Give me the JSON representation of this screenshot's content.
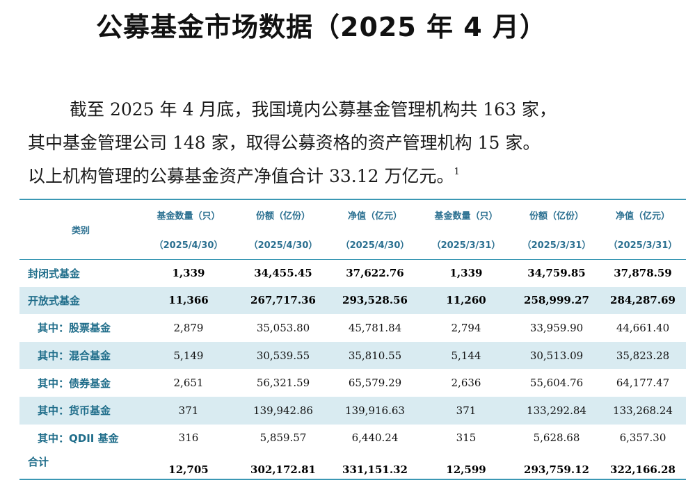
{
  "title": "公募基金市场数据（2025 年 4 月）",
  "paragraph": {
    "line1": "截至 2025 年 4 月底，我国境内公募基金管理机构共 163 家，",
    "line2": "其中基金管理公司 148 家，取得公募资格的资产管理机构 15 家。",
    "line3": "以上机构管理的公募基金资产净值合计 33.12 万亿元。",
    "footnote": "1"
  },
  "table": {
    "category_header": "类别",
    "columns": [
      {
        "label": "基金数量（只）",
        "date": "（2025/4/30）"
      },
      {
        "label": "份额（亿份）",
        "date": "（2025/4/30）"
      },
      {
        "label": "净值（亿元）",
        "date": "（2025/4/30）"
      },
      {
        "label": "基金数量（只）",
        "date": "（2025/3/31）"
      },
      {
        "label": "份额（亿份）",
        "date": "（2025/3/31）"
      },
      {
        "label": "净值（亿元）",
        "date": "（2025/3/31）"
      }
    ],
    "rows": [
      {
        "category": "封闭式基金",
        "values": [
          "1,339",
          "34,455.45",
          "37,622.76",
          "1,339",
          "34,759.85",
          "37,878.59"
        ]
      },
      {
        "category": "开放式基金",
        "values": [
          "11,366",
          "267,717.36",
          "293,528.56",
          "11,260",
          "258,999.27",
          "284,287.69"
        ]
      },
      {
        "category": "其中：股票基金",
        "values": [
          "2,879",
          "35,053.80",
          "45,781.84",
          "2,794",
          "33,959.90",
          "44,661.40"
        ]
      },
      {
        "category": "其中：混合基金",
        "values": [
          "5,149",
          "30,539.55",
          "35,810.55",
          "5,144",
          "30,513.09",
          "35,823.28"
        ]
      },
      {
        "category": "其中：债券基金",
        "values": [
          "2,651",
          "56,321.59",
          "65,579.29",
          "2,636",
          "55,604.76",
          "64,177.47"
        ]
      },
      {
        "category": "其中：货币基金",
        "values": [
          "371",
          "139,942.86",
          "139,916.63",
          "371",
          "133,292.84",
          "133,268.24"
        ]
      },
      {
        "category": "其中：QDII 基金",
        "values": [
          "316",
          "5,859.57",
          "6,440.24",
          "315",
          "5,628.68",
          "6,357.30"
        ]
      },
      {
        "category": "合计",
        "values": [
          "12,705",
          "302,172.81",
          "331,151.32",
          "12,599",
          "293,759.12",
          "322,166.28"
        ]
      }
    ]
  }
}
